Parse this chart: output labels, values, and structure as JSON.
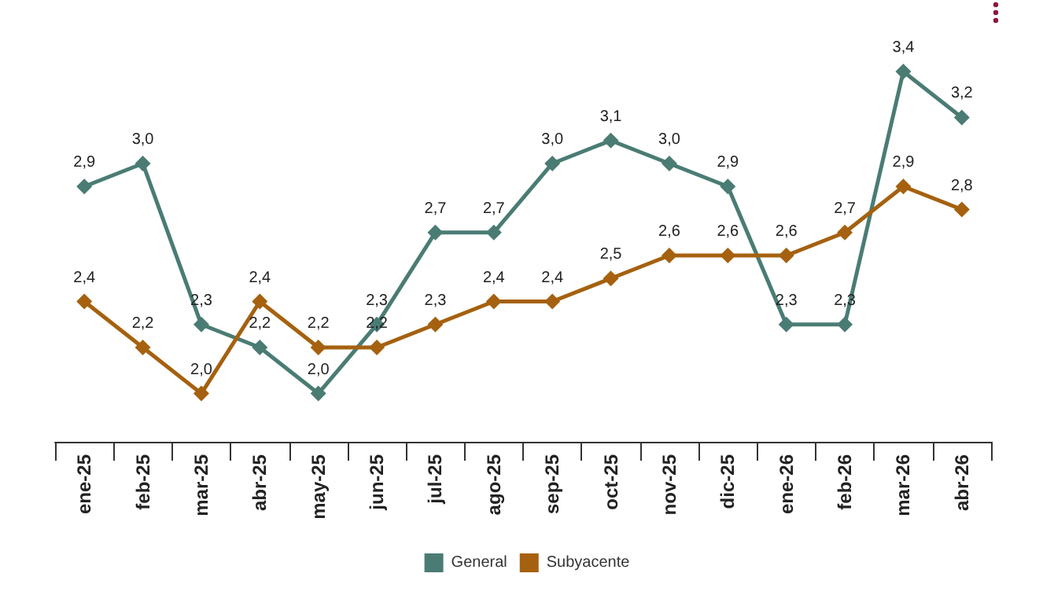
{
  "chart_data": {
    "type": "line",
    "categories": [
      "ene-25",
      "feb-25",
      "mar-25",
      "abr-25",
      "may-25",
      "jun-25",
      "jul-25",
      "ago-25",
      "sep-25",
      "oct-25",
      "nov-25",
      "dic-25",
      "ene-26",
      "feb-26",
      "mar-26",
      "abr-26"
    ],
    "series": [
      {
        "name": "General",
        "color": "#4a7c74",
        "values": [
          2.9,
          3.0,
          2.3,
          2.2,
          2.0,
          2.3,
          2.7,
          2.7,
          3.0,
          3.1,
          3.0,
          2.9,
          2.3,
          2.3,
          3.4,
          3.2
        ],
        "value_labels": [
          "2,9",
          "3,0",
          "2,3",
          "2,2",
          "2,0",
          "2,3",
          "2,7",
          "2,7",
          "3,0",
          "3,1",
          "3,0",
          "2,9",
          "2,3",
          "2,3",
          "3,4",
          "3,2"
        ]
      },
      {
        "name": "Subyacente",
        "color": "#a5610f",
        "values": [
          2.4,
          2.2,
          2.0,
          2.4,
          2.2,
          2.2,
          2.3,
          2.4,
          2.4,
          2.5,
          2.6,
          2.6,
          2.6,
          2.7,
          2.9,
          2.8
        ],
        "value_labels": [
          "2,4",
          "2,2",
          "2,0",
          "2,4",
          "2,2",
          "2,2",
          "2,3",
          "2,4",
          "2,4",
          "2,5",
          "2,6",
          "2,6",
          "2,6",
          "2,7",
          "2,9",
          "2,8"
        ]
      }
    ],
    "marker": "diamond",
    "line_style": "solid",
    "grid": false,
    "legend": "bottom"
  }
}
